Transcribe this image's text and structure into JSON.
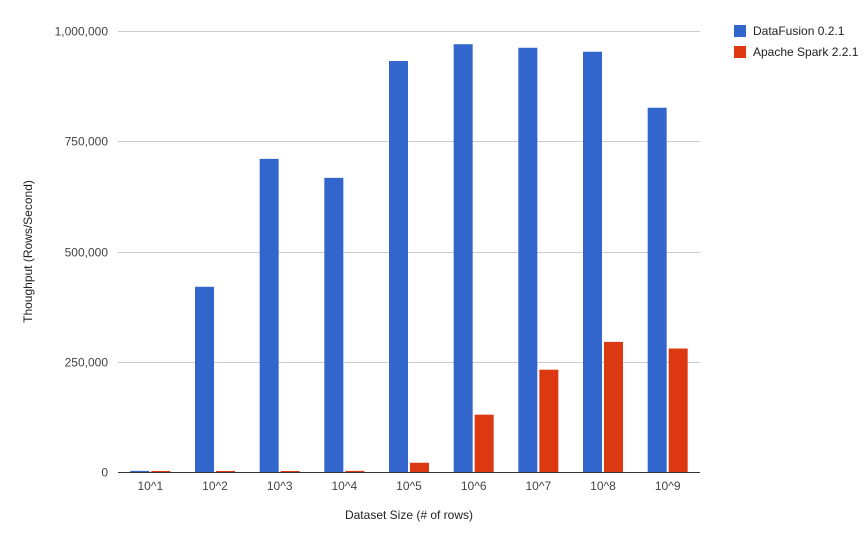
{
  "chart_data": {
    "type": "bar",
    "title": "",
    "xlabel": "Dataset Size (# of rows)",
    "ylabel": "Thoughput (Rows/Second)",
    "categories": [
      "10^1",
      "10^2",
      "10^3",
      "10^4",
      "10^5",
      "10^6",
      "10^7",
      "10^8",
      "10^9"
    ],
    "series": [
      {
        "name": "DataFusion 0.2.1",
        "color": "#3366cc",
        "values": [
          2500,
          420000,
          710000,
          667000,
          932000,
          970000,
          962000,
          953000,
          826000
        ]
      },
      {
        "name": "Apache Spark 2.2.1",
        "color": "#dc3912",
        "values": [
          100,
          600,
          900,
          2500,
          21000,
          130000,
          232000,
          295000,
          280000
        ]
      }
    ],
    "ylim": [
      0,
      1000000
    ],
    "yticks": [
      0,
      250000,
      500000,
      750000,
      1000000
    ],
    "ytick_labels": [
      "0",
      "250,000",
      "500,000",
      "750,000",
      "1,000,000"
    ],
    "grid": true,
    "legend_position": "top-right"
  }
}
